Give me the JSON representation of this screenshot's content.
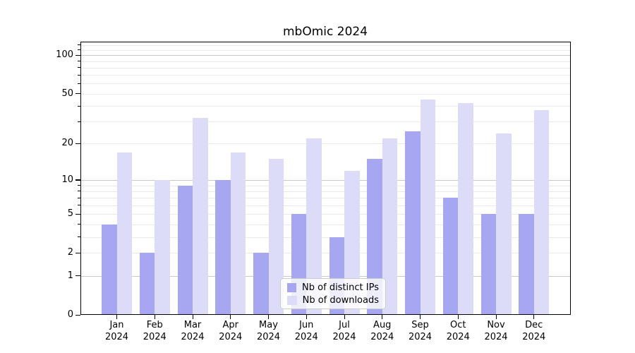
{
  "title": "mbOmic 2024",
  "chart_data": {
    "type": "bar",
    "title": "mbOmic 2024",
    "x_year": "2024",
    "x_months": [
      "Jan",
      "Feb",
      "Mar",
      "Apr",
      "May",
      "Jun",
      "Jul",
      "Aug",
      "Sep",
      "Oct",
      "Nov",
      "Dec"
    ],
    "categories": [
      "Jan 2024",
      "Feb 2024",
      "Mar 2024",
      "Apr 2024",
      "May 2024",
      "Jun 2024",
      "Jul 2024",
      "Aug 2024",
      "Sep 2024",
      "Oct 2024",
      "Nov 2024",
      "Dec 2024"
    ],
    "series": [
      {
        "name": "Nb of distinct IPs",
        "color": "#a7a7f1",
        "values": [
          4,
          2,
          9,
          10,
          2,
          5,
          3,
          15,
          25,
          7,
          5,
          5
        ]
      },
      {
        "name": "Nb of downloads",
        "color": "#dcdcf8",
        "values": [
          17,
          10,
          32,
          17,
          15,
          22,
          12,
          22,
          45,
          42,
          24,
          37
        ]
      }
    ],
    "yscale": "log1p",
    "y_ticks": [
      0,
      1,
      2,
      5,
      10,
      20,
      50,
      100
    ],
    "ylim": [
      0,
      128
    ],
    "xlabel": "",
    "ylabel": "",
    "grid": "both",
    "legend_position": "lower center",
    "colors": {
      "major_grid": "#c8c8c8",
      "minor_grid": "#eaeaea",
      "axis": "#000000",
      "background": "#ffffff"
    }
  },
  "legend": {
    "items": [
      {
        "label": "Nb of distinct IPs"
      },
      {
        "label": "Nb of downloads"
      }
    ]
  }
}
